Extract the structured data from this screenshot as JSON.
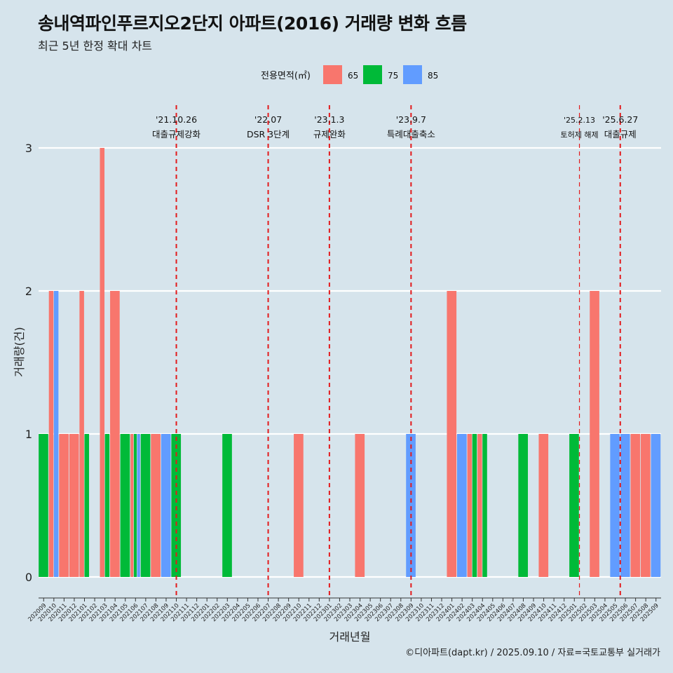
{
  "header": {
    "title": "송내역파인푸르지오2단지 아파트(2016) 거래량 변화 흐름",
    "subtitle": "최근 5년 한정 확대 차트"
  },
  "footer": {
    "caption": "©디아파트(dapt.kr) / 2025.09.10 / 자료=국토교통부 실거래가"
  },
  "colors": {
    "background": "#d6e4ec",
    "s65": "#f8766d",
    "s75": "#00ba38",
    "s85": "#619cff",
    "vline": "#e31a1c",
    "grid": "#ffffff"
  },
  "chart_data": {
    "type": "bar",
    "title": "송내역파인푸르지오2단지 아파트(2016) 거래량 변화 흐름",
    "xlabel": "거래년월",
    "ylabel": "거래량(건)",
    "ylim": [
      0,
      3
    ],
    "yticks": [
      0,
      1,
      2,
      3
    ],
    "legend": {
      "title": "전용면적(㎡)",
      "position": "top"
    },
    "categories": [
      "202009",
      "202010",
      "202011",
      "202012",
      "202101",
      "202102",
      "202103",
      "202104",
      "202105",
      "202106",
      "202107",
      "202108",
      "202109",
      "202110",
      "202111",
      "202112",
      "202201",
      "202202",
      "202203",
      "202204",
      "202205",
      "202206",
      "202207",
      "202208",
      "202209",
      "202210",
      "202211",
      "202212",
      "202301",
      "202302",
      "202303",
      "202304",
      "202305",
      "202306",
      "202307",
      "202308",
      "202309",
      "202310",
      "202311",
      "202312",
      "202401",
      "202402",
      "202403",
      "202404",
      "202405",
      "202406",
      "202407",
      "202408",
      "202409",
      "202410",
      "202411",
      "202412",
      "202501",
      "202502",
      "202503",
      "202504",
      "202505",
      "202506",
      "202507",
      "202508",
      "202509"
    ],
    "series": [
      {
        "name": "65",
        "color": "#f8766d",
        "values": [
          0,
          2,
          1,
          1,
          2,
          0,
          3,
          2,
          0,
          1,
          0,
          1,
          0,
          0,
          0,
          0,
          0,
          0,
          0,
          0,
          0,
          0,
          0,
          0,
          0,
          1,
          0,
          0,
          0,
          0,
          0,
          1,
          0,
          0,
          0,
          0,
          0,
          0,
          0,
          0,
          2,
          0,
          1,
          1,
          0,
          0,
          0,
          0,
          0,
          1,
          0,
          0,
          0,
          0,
          2,
          0,
          0,
          0,
          1,
          1,
          0
        ]
      },
      {
        "name": "75",
        "color": "#00ba38",
        "values": [
          1,
          0,
          0,
          0,
          1,
          0,
          1,
          0,
          1,
          1,
          1,
          0,
          0,
          1,
          0,
          0,
          0,
          0,
          1,
          0,
          0,
          0,
          0,
          0,
          0,
          0,
          0,
          0,
          0,
          0,
          0,
          0,
          0,
          0,
          0,
          0,
          0,
          0,
          0,
          0,
          0,
          0,
          1,
          1,
          0,
          0,
          0,
          1,
          0,
          0,
          0,
          0,
          1,
          0,
          0,
          0,
          0,
          0,
          0,
          0,
          0
        ]
      },
      {
        "name": "85",
        "color": "#619cff",
        "values": [
          0,
          2,
          0,
          0,
          0,
          0,
          0,
          0,
          0,
          1,
          0,
          0,
          1,
          0,
          0,
          0,
          0,
          0,
          0,
          0,
          0,
          0,
          0,
          0,
          0,
          0,
          0,
          0,
          0,
          0,
          0,
          0,
          0,
          0,
          0,
          0,
          1,
          0,
          0,
          0,
          0,
          1,
          0,
          0,
          0,
          0,
          0,
          0,
          0,
          0,
          0,
          0,
          0,
          0,
          0,
          0,
          1,
          1,
          0,
          0,
          1
        ]
      }
    ],
    "events": [
      {
        "date": "'21.10.26",
        "label": "대출규제강화",
        "at": 13.5
      },
      {
        "date": "'22.07",
        "label": "DSR 3단계",
        "at": 22.5
      },
      {
        "date": "'23.1.3",
        "label": "규제완화",
        "at": 28.5
      },
      {
        "date": "'23.9.7",
        "label": "특례대출축소",
        "at": 36.5
      },
      {
        "date": "'25.2.13",
        "label": "토허제 해제",
        "at": 53.0
      },
      {
        "date": "'25.6.27",
        "label": "대출규제",
        "at": 57.0
      }
    ]
  }
}
